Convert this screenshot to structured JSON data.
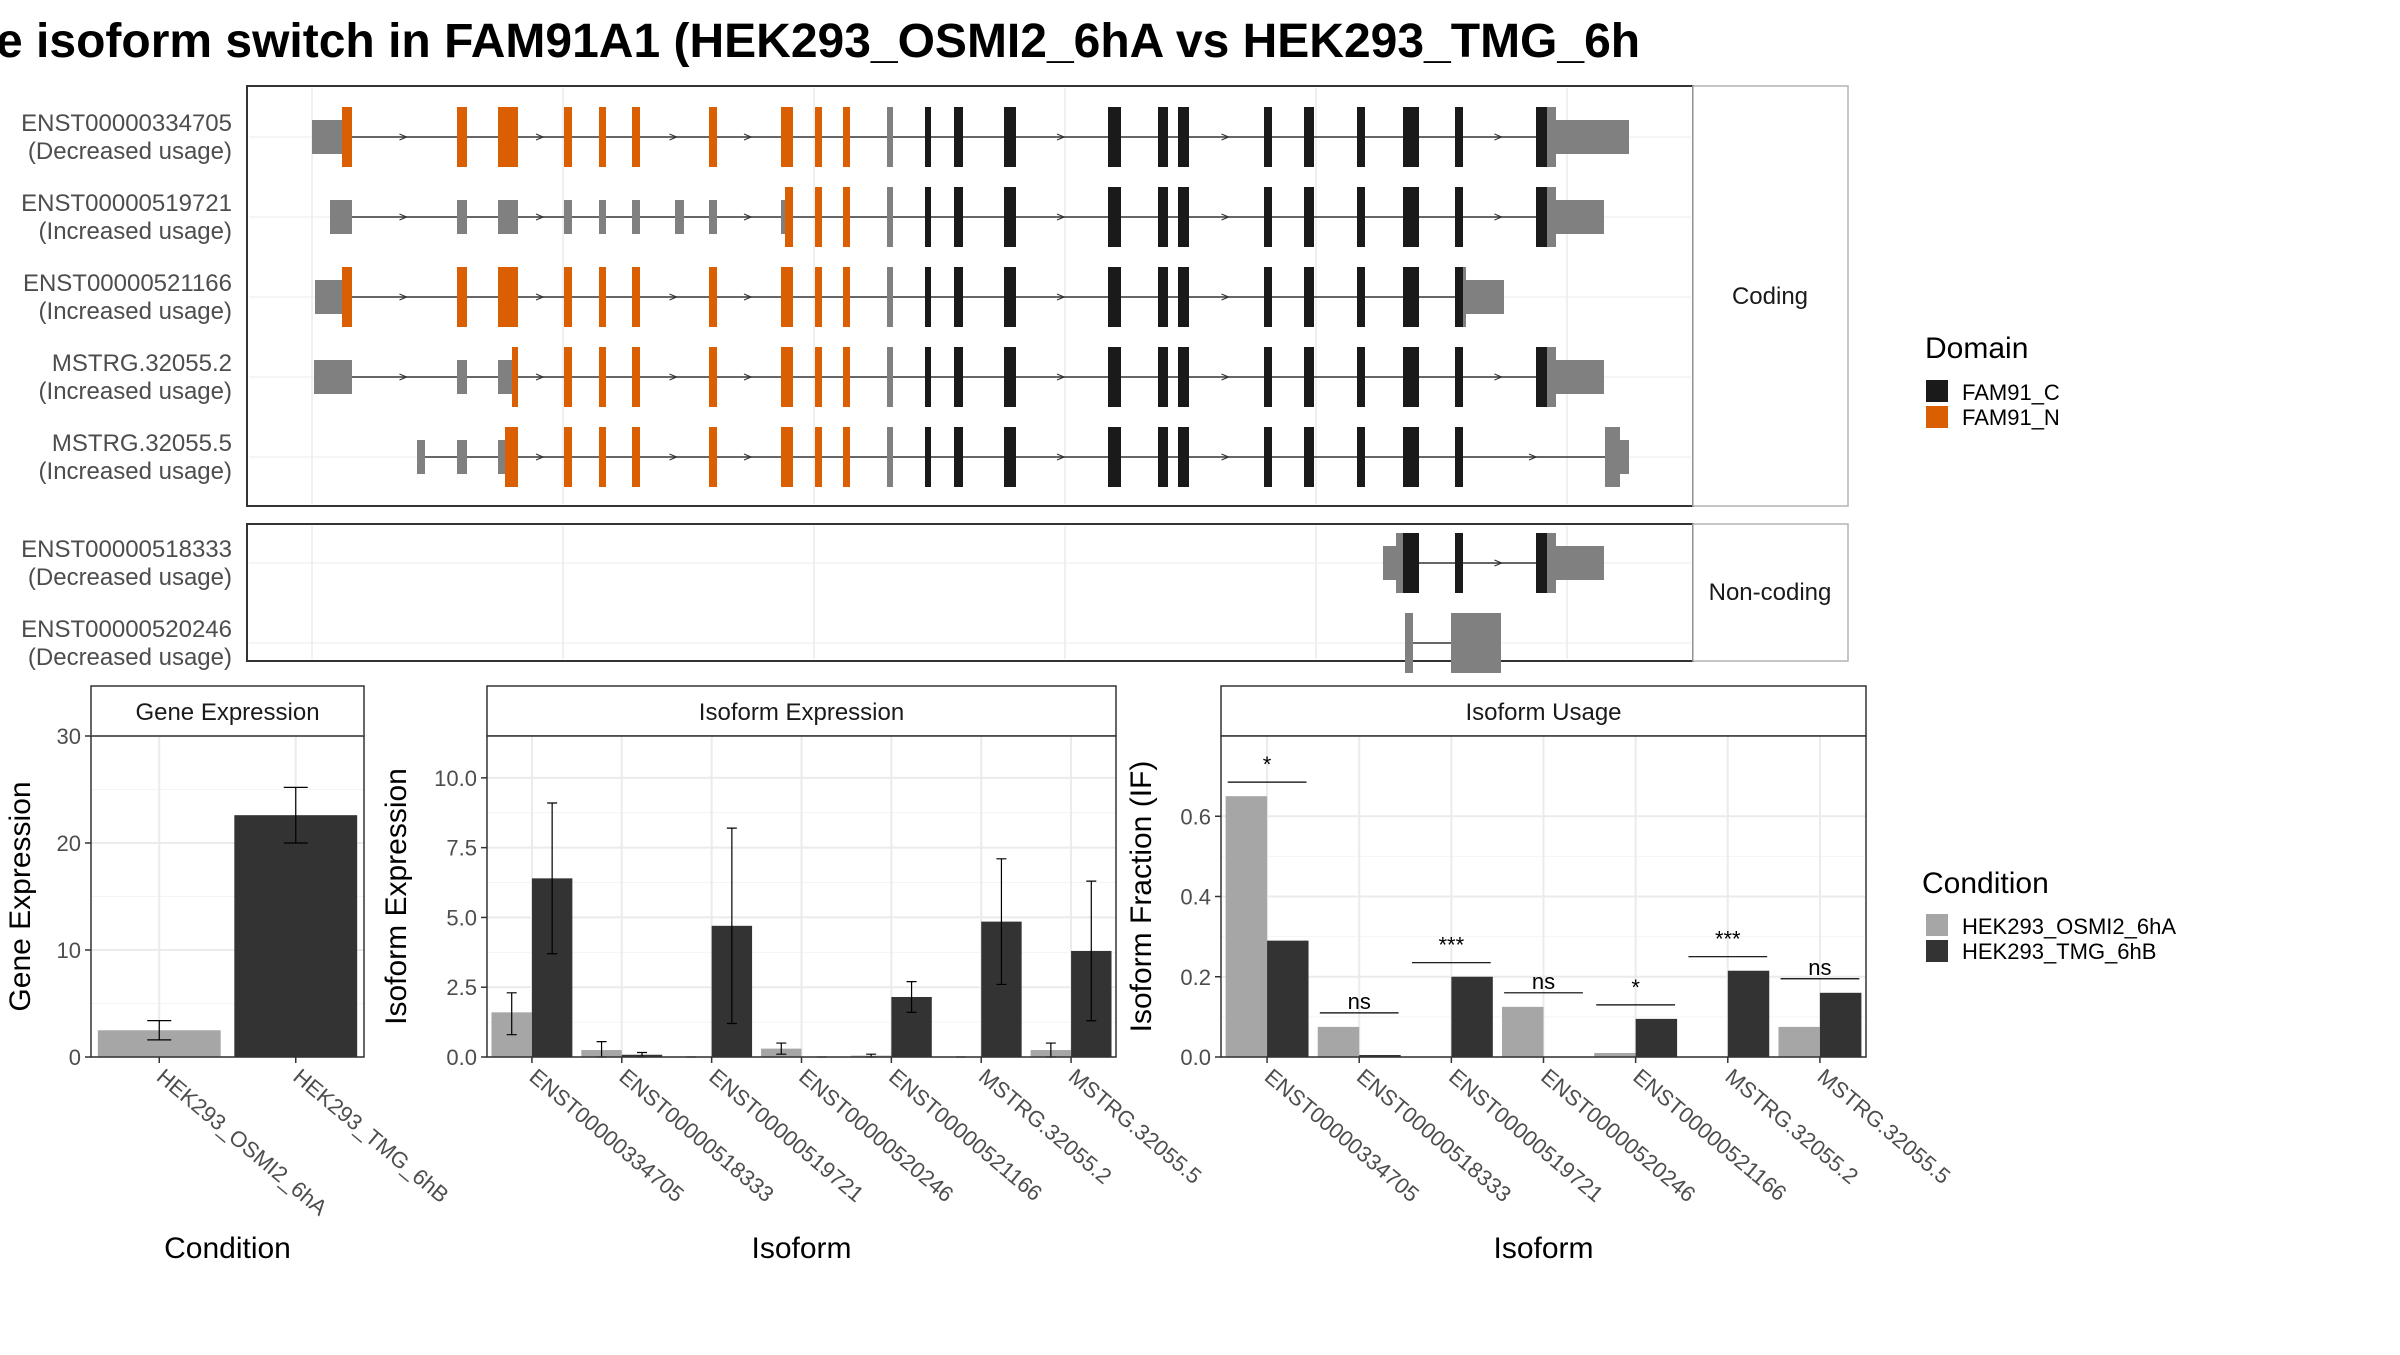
{
  "title": "e isoform switch in FAM91A1 (HEK293_OSMI2_6hA vs HEK293_TMG_6h",
  "colors": {
    "fam91c": "#1a1a1a",
    "fam91n": "#d95f02",
    "noncoding_exon": "#808080",
    "cond1": "#a6a6a6",
    "cond2": "#333333",
    "grid": "#ebebeb",
    "strip_bg": "#ffffff"
  },
  "structure": {
    "coding_label": "Coding",
    "noncoding_label": "Non-coding",
    "coding_isoforms": [
      {
        "id": "ENST00000334705",
        "usage": "(Decreased usage)"
      },
      {
        "id": "ENST00000519721",
        "usage": "(Increased usage)"
      },
      {
        "id": "ENST00000521166",
        "usage": "(Increased usage)"
      },
      {
        "id": "MSTRG.32055.2",
        "usage": "(Increased usage)"
      },
      {
        "id": "MSTRG.32055.5",
        "usage": "(Increased usage)"
      }
    ],
    "noncoding_isoforms": [
      {
        "id": "ENST00000518333",
        "usage": "(Decreased usage)"
      },
      {
        "id": "ENST00000520246",
        "usage": "(Decreased usage)"
      }
    ]
  },
  "legends": {
    "domain_title": "Domain",
    "domain_items": [
      {
        "label": "FAM91_C",
        "color": "#1a1a1a"
      },
      {
        "label": "FAM91_N",
        "color": "#d95f02"
      }
    ],
    "condition_title": "Condition",
    "condition_items": [
      {
        "label": "HEK293_OSMI2_6hA",
        "color": "#a6a6a6"
      },
      {
        "label": "HEK293_TMG_6hB",
        "color": "#333333"
      }
    ]
  },
  "chart_data": [
    {
      "type": "bar",
      "title": "Gene Expression",
      "xlabel": "Condition",
      "ylabel": "Gene Expression",
      "ylim": [
        0,
        30
      ],
      "yticks": [
        0,
        10,
        20,
        30
      ],
      "categories": [
        "HEK293_OSMI2_6hA",
        "HEK293_TMG_6hB"
      ],
      "values": [
        2.5,
        22.6
      ],
      "errors": [
        [
          1.6,
          3.4
        ],
        [
          20.0,
          25.2
        ]
      ]
    },
    {
      "type": "bar",
      "title": "Isoform Expression",
      "xlabel": "Isoform",
      "ylabel": "Isoform Expression",
      "ylim": [
        0,
        11.5
      ],
      "yticks": [
        "0.0",
        "2.5",
        "5.0",
        "7.5",
        "10.0"
      ],
      "categories": [
        "ENST00000334705",
        "ENST00000518333",
        "ENST00000519721",
        "ENST00000520246",
        "ENST00000521166",
        "MSTRG.32055.2",
        "MSTRG.32055.5"
      ],
      "series": [
        {
          "name": "HEK293_OSMI2_6hA",
          "values": [
            1.6,
            0.25,
            0.0,
            0.3,
            0.05,
            0.0,
            0.25
          ],
          "errors": [
            [
              0.8,
              2.3
            ],
            [
              0.0,
              0.55
            ],
            [
              0.0,
              0.0
            ],
            [
              0.1,
              0.5
            ],
            [
              0.0,
              0.1
            ],
            [
              0.0,
              0.0
            ],
            [
              0.0,
              0.5
            ]
          ]
        },
        {
          "name": "HEK293_TMG_6hB",
          "values": [
            6.4,
            0.08,
            4.7,
            0.0,
            2.15,
            4.85,
            3.8
          ],
          "errors": [
            [
              3.7,
              9.1
            ],
            [
              0.0,
              0.16
            ],
            [
              1.2,
              8.2
            ],
            [
              0.0,
              0.0
            ],
            [
              1.6,
              2.7
            ],
            [
              2.6,
              7.1
            ],
            [
              1.3,
              6.3
            ]
          ]
        }
      ]
    },
    {
      "type": "bar",
      "title": "Isoform Usage",
      "xlabel": "Isoform",
      "ylabel": "Isoform Fraction (IF)",
      "ylim": [
        0,
        0.8
      ],
      "yticks": [
        "0.0",
        "0.2",
        "0.4",
        "0.6"
      ],
      "categories": [
        "ENST00000334705",
        "ENST00000518333",
        "ENST00000519721",
        "ENST00000520246",
        "ENST00000521166",
        "MSTRG.32055.2",
        "MSTRG.32055.5"
      ],
      "series": [
        {
          "name": "HEK293_OSMI2_6hA",
          "values": [
            0.65,
            0.075,
            0.0,
            0.125,
            0.01,
            0.0,
            0.075
          ]
        },
        {
          "name": "HEK293_TMG_6hB",
          "values": [
            0.29,
            0.005,
            0.2,
            0.0,
            0.095,
            0.215,
            0.16
          ]
        }
      ],
      "significance": [
        "*",
        "ns",
        "***",
        "ns",
        "*",
        "***",
        "ns"
      ]
    }
  ]
}
